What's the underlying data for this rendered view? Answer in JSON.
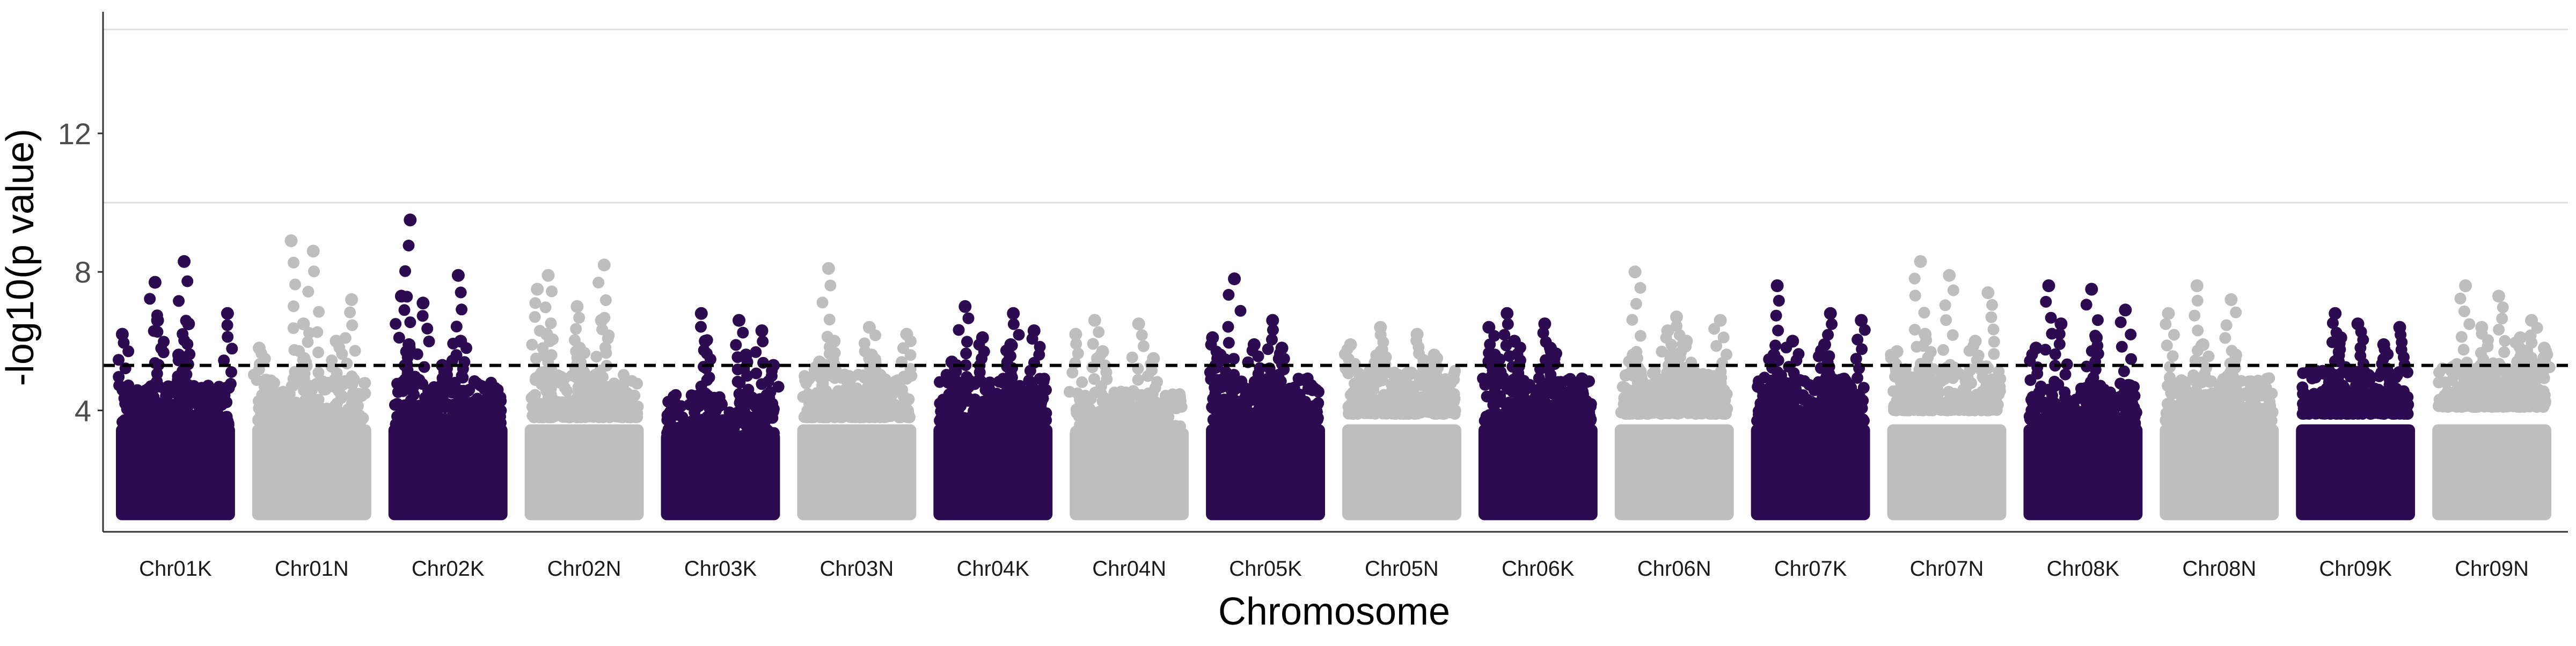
{
  "chart_data": {
    "type": "scatter",
    "title": "",
    "xlabel": "Chromosome",
    "ylabel": "-log10(p value)",
    "ylim": [
      0,
      15.5
    ],
    "yticks": [
      4,
      8,
      12
    ],
    "grid": "horizontal gridlines at y = 10 and y = 15",
    "gridlines_y": [
      10,
      15
    ],
    "threshold": 5.3,
    "colors": {
      "odd": "#2c0b50",
      "even": "#bebebe",
      "axis": "#333333",
      "grid": "#dedede",
      "threshold": "#000000"
    },
    "series": [
      {
        "name": "Chr01K",
        "base_max": 4.6,
        "peaks": [
          7.7,
          8.3,
          6.8,
          6.6,
          6.5,
          6.2,
          5.6
        ]
      },
      {
        "name": "Chr01N",
        "base_max": 4.8,
        "peaks": [
          8.9,
          8.6,
          7.2,
          6.5,
          6.0,
          5.8,
          5.5
        ]
      },
      {
        "name": "Chr02K",
        "base_max": 4.7,
        "peaks": [
          9.5,
          7.9,
          7.3,
          7.1,
          6.0,
          5.9,
          5.3
        ]
      },
      {
        "name": "Chr02N",
        "base_max": 4.9,
        "peaks": [
          7.9,
          8.2,
          7.5,
          7.0,
          6.6,
          6.2,
          5.8
        ]
      },
      {
        "name": "Chr03K",
        "base_max": 4.3,
        "peaks": [
          6.8,
          6.6,
          6.3,
          6.0,
          5.6,
          5.3
        ]
      },
      {
        "name": "Chr03N",
        "base_max": 4.9,
        "peaks": [
          8.1,
          6.4,
          6.2,
          6.0,
          5.6,
          5.4
        ]
      },
      {
        "name": "Chr04K",
        "base_max": 4.8,
        "peaks": [
          7.0,
          6.8,
          6.3,
          6.1,
          5.9,
          5.4
        ]
      },
      {
        "name": "Chr04N",
        "base_max": 4.4,
        "peaks": [
          6.6,
          6.5,
          6.2,
          5.7,
          5.5
        ]
      },
      {
        "name": "Chr05K",
        "base_max": 4.8,
        "peaks": [
          7.8,
          6.6,
          6.1,
          5.9,
          5.8,
          5.6
        ]
      },
      {
        "name": "Chr05N",
        "base_max": 5.0,
        "peaks": [
          6.4,
          6.2,
          5.9,
          5.7,
          5.6
        ]
      },
      {
        "name": "Chr06K",
        "base_max": 4.8,
        "peaks": [
          6.8,
          6.5,
          6.4,
          6.0,
          5.8,
          5.6
        ]
      },
      {
        "name": "Chr06N",
        "base_max": 5.0,
        "peaks": [
          8.0,
          6.7,
          6.6,
          6.3,
          6.0,
          5.6
        ]
      },
      {
        "name": "Chr07K",
        "base_max": 4.8,
        "peaks": [
          7.6,
          6.8,
          6.6,
          6.0,
          5.9,
          5.6
        ]
      },
      {
        "name": "Chr07N",
        "base_max": 5.1,
        "peaks": [
          8.3,
          7.9,
          7.4,
          6.2,
          6.0,
          5.7
        ]
      },
      {
        "name": "Chr08K",
        "base_max": 4.6,
        "peaks": [
          7.6,
          7.5,
          6.9,
          6.5,
          6.1,
          5.8
        ]
      },
      {
        "name": "Chr08N",
        "base_max": 4.8,
        "peaks": [
          7.6,
          7.2,
          6.8,
          5.9,
          5.6
        ]
      },
      {
        "name": "Chr09K",
        "base_max": 5.0,
        "peaks": [
          6.8,
          6.5,
          6.4,
          6.1,
          5.9
        ]
      },
      {
        "name": "Chr09N",
        "base_max": 5.2,
        "peaks": [
          7.6,
          7.3,
          6.6,
          6.4,
          6.1,
          5.8
        ]
      }
    ]
  }
}
